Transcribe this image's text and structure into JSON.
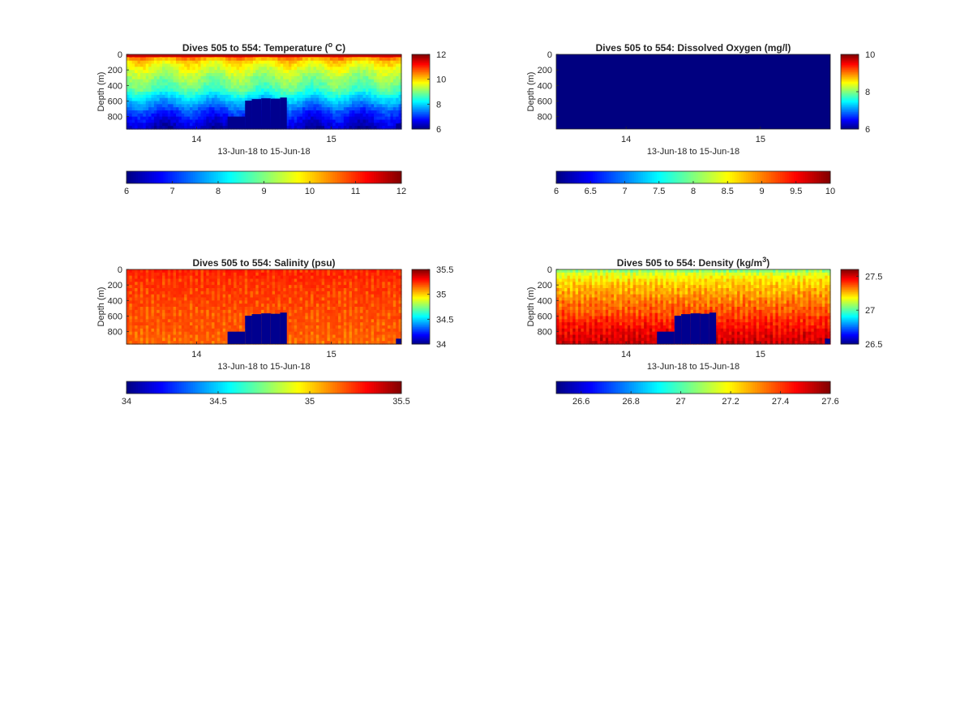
{
  "chart_data": [
    {
      "type": "heatmap",
      "title": "Dives 505 to 554: Temperature (",
      "title_sup": "o",
      "title_tail": " C)",
      "ylabel": "Depth (m)",
      "xlabel": "13-Jun-18 to 15-Jun-18",
      "ylim": [
        960,
        0
      ],
      "xlim": [
        13.48,
        15.52
      ],
      "yticks": [
        "0",
        "200",
        "400",
        "600",
        "800"
      ],
      "ytick_values": [
        0,
        200,
        400,
        600,
        800
      ],
      "xticks": [
        "14",
        "15"
      ],
      "xtick_values": [
        14,
        15
      ],
      "clim": [
        6,
        12
      ],
      "colorbar_ticks": [
        "6",
        "8",
        "10",
        "12"
      ],
      "colorbar_tick_values": [
        6,
        8,
        10,
        12
      ],
      "h_colorbar_ticks": [
        "6",
        "7",
        "8",
        "9",
        "10",
        "11",
        "12"
      ],
      "h_colorbar_tick_values": [
        6,
        7,
        8,
        9,
        10,
        11,
        12
      ],
      "field": "temperature",
      "depth_profile": [
        [
          0,
          11.4
        ],
        [
          30,
          10.6
        ],
        [
          100,
          9.9
        ],
        [
          250,
          9.3
        ],
        [
          450,
          8.7
        ],
        [
          600,
          7.8
        ],
        [
          750,
          7.0
        ],
        [
          900,
          6.5
        ],
        [
          960,
          6.3
        ]
      ],
      "colormap": "jet",
      "masks": [
        {
          "x": [
            14.23,
            14.36
          ],
          "depth_top": 800
        },
        {
          "x": [
            14.36,
            14.41
          ],
          "depth_top": 595
        },
        {
          "x": [
            14.41,
            14.48
          ],
          "depth_top": 575
        },
        {
          "x": [
            14.48,
            14.55
          ],
          "depth_top": 565
        },
        {
          "x": [
            14.55,
            14.62
          ],
          "depth_top": 570
        },
        {
          "x": [
            14.62,
            14.67
          ],
          "depth_top": 555
        },
        {
          "x": [
            15.48,
            15.52
          ],
          "depth_top": 890
        }
      ]
    },
    {
      "type": "heatmap",
      "title": "Dives 505 to 554: Dissolved Oxygen (mg/l)",
      "title_sup": "",
      "title_tail": "",
      "ylabel": "Depth (m)",
      "xlabel": "13-Jun-18 to 15-Jun-18",
      "ylim": [
        960,
        0
      ],
      "xlim": [
        13.48,
        15.52
      ],
      "yticks": [
        "0",
        "200",
        "400",
        "600",
        "800"
      ],
      "ytick_values": [
        0,
        200,
        400,
        600,
        800
      ],
      "xticks": [
        "14",
        "15"
      ],
      "xtick_values": [
        14,
        15
      ],
      "clim": [
        6,
        10
      ],
      "colorbar_ticks": [
        "6",
        "8",
        "10"
      ],
      "colorbar_tick_values": [
        6,
        8,
        10
      ],
      "h_colorbar_ticks": [
        "6",
        "6.5",
        "7",
        "7.5",
        "8",
        "8.5",
        "9",
        "9.5",
        "10"
      ],
      "h_colorbar_tick_values": [
        6,
        6.5,
        7,
        7.5,
        8,
        8.5,
        9,
        9.5,
        10
      ],
      "field": "uniform",
      "uniform_value": 6,
      "colormap": "jet",
      "masks": []
    },
    {
      "type": "heatmap",
      "title": "Dives 505 to 554: Salinity (psu)",
      "title_sup": "",
      "title_tail": "",
      "ylabel": "Depth (m)",
      "xlabel": "13-Jun-18 to 15-Jun-18",
      "ylim": [
        960,
        0
      ],
      "xlim": [
        13.48,
        15.52
      ],
      "yticks": [
        "0",
        "200",
        "400",
        "600",
        "800"
      ],
      "ytick_values": [
        0,
        200,
        400,
        600,
        800
      ],
      "xticks": [
        "14",
        "15"
      ],
      "xtick_values": [
        14,
        15
      ],
      "clim": [
        34,
        35.5
      ],
      "colorbar_ticks": [
        "34",
        "34.5",
        "35",
        "35.5"
      ],
      "colorbar_tick_values": [
        34,
        34.5,
        35,
        35.5
      ],
      "h_colorbar_ticks": [
        "34",
        "34.5",
        "35",
        "35.5"
      ],
      "h_colorbar_tick_values": [
        34,
        34.5,
        35,
        35.5
      ],
      "field": "salinity",
      "depth_profile": [
        [
          0,
          35.28
        ],
        [
          200,
          35.25
        ],
        [
          500,
          35.22
        ],
        [
          800,
          35.2
        ],
        [
          960,
          35.18
        ]
      ],
      "colormap": "jet",
      "masks": [
        {
          "x": [
            14.23,
            14.36
          ],
          "depth_top": 800
        },
        {
          "x": [
            14.36,
            14.41
          ],
          "depth_top": 595
        },
        {
          "x": [
            14.41,
            14.48
          ],
          "depth_top": 575
        },
        {
          "x": [
            14.48,
            14.55
          ],
          "depth_top": 565
        },
        {
          "x": [
            14.55,
            14.62
          ],
          "depth_top": 570
        },
        {
          "x": [
            14.62,
            14.67
          ],
          "depth_top": 555
        },
        {
          "x": [
            15.48,
            15.52
          ],
          "depth_top": 890
        }
      ]
    },
    {
      "type": "heatmap",
      "title": "Dives 505 to 554: Density (kg/m",
      "title_sup": "3",
      "title_tail": ")",
      "ylabel": "Depth (m)",
      "xlabel": "13-Jun-18 to 15-Jun-18",
      "ylim": [
        960,
        0
      ],
      "xlim": [
        13.48,
        15.52
      ],
      "yticks": [
        "0",
        "200",
        "400",
        "600",
        "800"
      ],
      "ytick_values": [
        0,
        200,
        400,
        600,
        800
      ],
      "xticks": [
        "14",
        "15"
      ],
      "xtick_values": [
        14,
        15
      ],
      "clim": [
        26.5,
        27.6
      ],
      "colorbar_ticks": [
        "26.5",
        "27",
        "27.5"
      ],
      "colorbar_tick_values": [
        26.5,
        27,
        27.5
      ],
      "h_colorbar_ticks": [
        "26.6",
        "26.8",
        "27",
        "27.2",
        "27.4",
        "27.6"
      ],
      "h_colorbar_tick_values": [
        26.6,
        26.8,
        27,
        27.2,
        27.4,
        27.6
      ],
      "field": "density",
      "depth_profile": [
        [
          0,
          27.0
        ],
        [
          30,
          27.15
        ],
        [
          150,
          27.25
        ],
        [
          350,
          27.33
        ],
        [
          600,
          27.42
        ],
        [
          800,
          27.5
        ],
        [
          960,
          27.55
        ]
      ],
      "colormap": "jet",
      "masks": [
        {
          "x": [
            14.23,
            14.36
          ],
          "depth_top": 800
        },
        {
          "x": [
            14.36,
            14.41
          ],
          "depth_top": 595
        },
        {
          "x": [
            14.41,
            14.48
          ],
          "depth_top": 575
        },
        {
          "x": [
            14.48,
            14.55
          ],
          "depth_top": 565
        },
        {
          "x": [
            14.55,
            14.62
          ],
          "depth_top": 570
        },
        {
          "x": [
            14.62,
            14.67
          ],
          "depth_top": 555
        },
        {
          "x": [
            15.48,
            15.52
          ],
          "depth_top": 890
        }
      ]
    }
  ]
}
